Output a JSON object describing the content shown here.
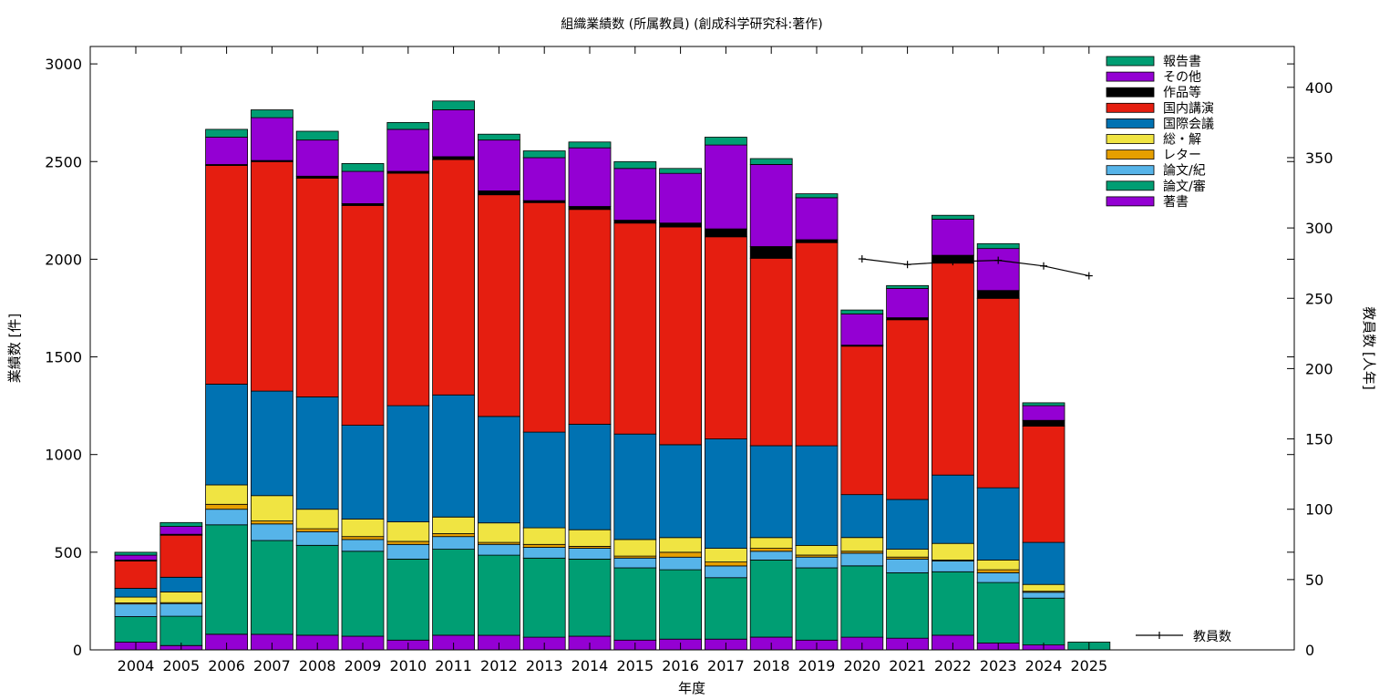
{
  "chart_data": {
    "type": "bar",
    "stacked": true,
    "title": "組織業績数 (所属教員) (創成科学研究科:著作)",
    "xlabel": "年度",
    "ylabel": "業績数 [件]",
    "y2label": "教員数 [人年]",
    "ylim": [
      0,
      3100
    ],
    "y2lim": [
      0,
      430
    ],
    "yticks": [
      0,
      500,
      1000,
      1500,
      2000,
      2500,
      3000
    ],
    "y2ticks": [
      0,
      50,
      100,
      150,
      200,
      250,
      300,
      350,
      400
    ],
    "grid": false,
    "legend_position": "top-right",
    "categories": [
      "2004",
      "2005",
      "2006",
      "2007",
      "2008",
      "2009",
      "2010",
      "2011",
      "2012",
      "2013",
      "2014",
      "2015",
      "2016",
      "2017",
      "2018",
      "2019",
      "2020",
      "2021",
      "2022",
      "2023",
      "2024",
      "2025"
    ],
    "series": [
      {
        "name": "著書",
        "color": "#9400d3",
        "values": [
          40,
          22,
          80,
          80,
          75,
          70,
          50,
          75,
          75,
          65,
          70,
          50,
          55,
          55,
          65,
          50,
          65,
          60,
          75,
          35,
          25,
          0
        ]
      },
      {
        "name": "論文/審",
        "color": "#009e73",
        "values": [
          130,
          150,
          560,
          480,
          460,
          435,
          415,
          440,
          410,
          405,
          395,
          370,
          355,
          315,
          395,
          370,
          365,
          335,
          325,
          310,
          240,
          0
        ]
      },
      {
        "name": "論文/紀",
        "color": "#56b4e9",
        "values": [
          65,
          65,
          80,
          85,
          70,
          60,
          75,
          65,
          55,
          55,
          55,
          50,
          65,
          60,
          45,
          55,
          65,
          70,
          55,
          50,
          30,
          0
        ]
      },
      {
        "name": "レター",
        "color": "#e69f00",
        "values": [
          5,
          5,
          25,
          15,
          15,
          15,
          15,
          15,
          10,
          15,
          10,
          10,
          25,
          20,
          15,
          10,
          10,
          10,
          5,
          15,
          5,
          0
        ]
      },
      {
        "name": "総・解",
        "color": "#f0e442",
        "values": [
          30,
          55,
          100,
          130,
          100,
          90,
          100,
          85,
          100,
          85,
          85,
          85,
          75,
          70,
          55,
          50,
          70,
          40,
          85,
          50,
          35,
          0
        ]
      },
      {
        "name": "国際会議",
        "color": "#0072b2",
        "values": [
          45,
          75,
          515,
          535,
          575,
          480,
          595,
          625,
          545,
          490,
          540,
          540,
          475,
          560,
          470,
          510,
          220,
          255,
          350,
          370,
          215,
          0
        ]
      },
      {
        "name": "国内講演",
        "color": "#e51e10",
        "values": [
          140,
          215,
          1120,
          1175,
          1120,
          1125,
          1190,
          1205,
          1135,
          1175,
          1100,
          1080,
          1115,
          1035,
          960,
          1040,
          760,
          920,
          1085,
          970,
          595,
          0
        ]
      },
      {
        "name": "作品等",
        "color": "#000000",
        "values": [
          5,
          5,
          5,
          5,
          10,
          10,
          10,
          15,
          20,
          10,
          15,
          15,
          20,
          40,
          60,
          15,
          5,
          10,
          40,
          40,
          30,
          0
        ]
      },
      {
        "name": "その他",
        "color": "#9400d3",
        "values": [
          25,
          40,
          140,
          220,
          185,
          165,
          215,
          240,
          260,
          220,
          300,
          265,
          255,
          430,
          420,
          215,
          160,
          150,
          185,
          215,
          75,
          0
        ]
      },
      {
        "name": "報告書",
        "color": "#009e73",
        "values": [
          15,
          20,
          40,
          40,
          45,
          40,
          35,
          45,
          30,
          35,
          30,
          35,
          25,
          40,
          30,
          20,
          20,
          15,
          20,
          25,
          15,
          40
        ]
      }
    ],
    "line_series": {
      "name": "教員数",
      "axis": "y2",
      "color": "#000000",
      "x": [
        "2020",
        "2021",
        "2022",
        "2023",
        "2024",
        "2025"
      ],
      "values": [
        278,
        274,
        276,
        277,
        273,
        266
      ]
    }
  }
}
